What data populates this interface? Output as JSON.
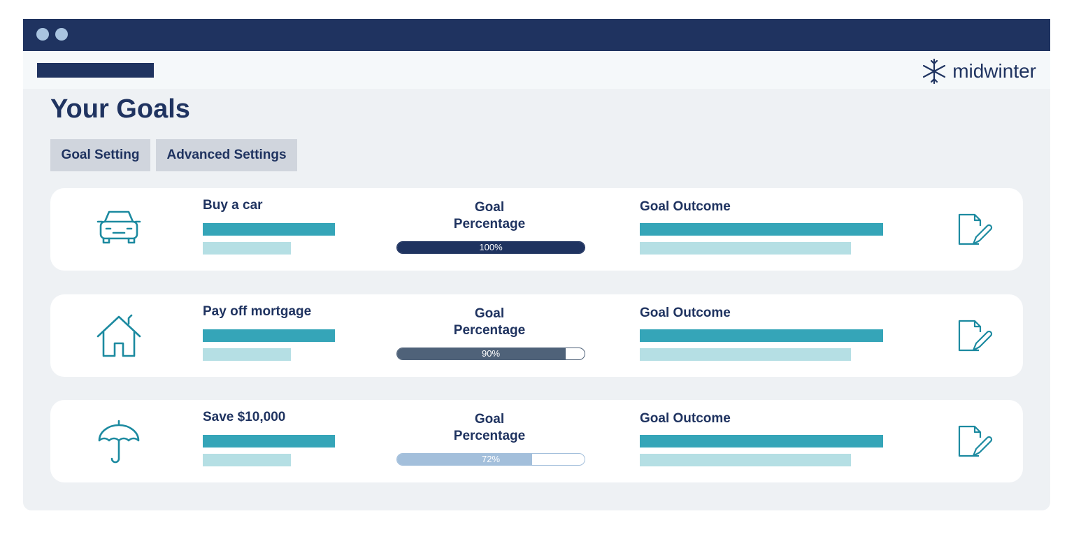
{
  "brand": "midwinter",
  "page_title": "Your Goals",
  "tabs": [
    "Goal Setting",
    "Advanced Settings"
  ],
  "labels": {
    "percentage": "Goal Percentage",
    "outcome": "Goal Outcome"
  },
  "goals": [
    {
      "title": "Buy a car",
      "icon": "car",
      "progress": 100,
      "progress_label": "100%",
      "color": "#1f3360"
    },
    {
      "title": "Pay off mortgage",
      "icon": "house",
      "progress": 90,
      "progress_label": "90%",
      "color": "#4f6279"
    },
    {
      "title": "Save $10,000",
      "icon": "umbrella",
      "progress": 72,
      "progress_label": "72%",
      "color": "#a3bfdb"
    }
  ]
}
